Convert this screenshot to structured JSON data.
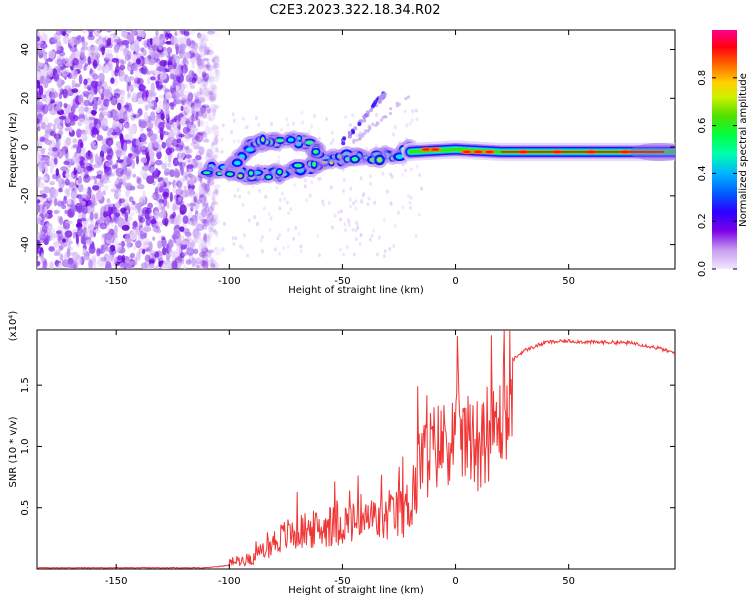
{
  "title": "C2E3.2023.322.18.34.R02",
  "chart_data": [
    {
      "type": "heatmap",
      "xlabel": "Height of straight line (km)",
      "ylabel": "Frequency (Hz)",
      "xlim": [
        -185,
        97
      ],
      "ylim": [
        -50,
        48
      ],
      "xticks": [
        -150,
        -100,
        -50,
        0,
        50
      ],
      "yticks": [
        -40,
        -20,
        0,
        20,
        40
      ],
      "colorbar": {
        "label": "Normalized spectral amplitude",
        "range": [
          0.0,
          1.0
        ],
        "ticks": [
          0.0,
          0.2,
          0.4,
          0.6,
          0.8
        ],
        "tick_labels": [
          "0.0",
          "0.2",
          "0.4",
          "0.6",
          "0.8"
        ],
        "colors": [
          "#f4e6ff",
          "#7a00e6",
          "#0000ff",
          "#00b4ff",
          "#00ff80",
          "#00e000",
          "#ffff00",
          "#ff8000",
          "#ff0000",
          "#ff0090"
        ]
      },
      "features": [
        {
          "name": "noise",
          "x_range": [
            -185,
            -105
          ],
          "freq_range": [
            -50,
            48
          ],
          "amplitude": 0.1
        },
        {
          "name": "lower branch",
          "points": [
            [
              -112,
              -10
            ],
            [
              -100,
              -9
            ],
            [
              -90,
              -12
            ],
            [
              -80,
              -11
            ],
            [
              -65,
              -8
            ],
            [
              -55,
              -5
            ],
            [
              -45,
              -4
            ],
            [
              -35,
              -4
            ],
            [
              -25,
              -3
            ],
            [
              -18,
              0
            ]
          ],
          "amplitude": 0.35
        },
        {
          "name": "upper branch",
          "points": [
            [
              -100,
              -10
            ],
            [
              -92,
              0
            ],
            [
              -85,
              2
            ],
            [
              -75,
              3
            ],
            [
              -65,
              2
            ],
            [
              -60,
              -3
            ]
          ],
          "amplitude": 0.3
        },
        {
          "name": "rising line",
          "points": [
            [
              -50,
              2
            ],
            [
              -42,
              10
            ],
            [
              -35,
              18
            ],
            [
              -30,
              23
            ]
          ],
          "amplitude": 0.2
        },
        {
          "name": "main line",
          "points": [
            [
              -20,
              -2
            ],
            [
              0,
              -1
            ],
            [
              20,
              -2
            ],
            [
              50,
              -2
            ],
            [
              97,
              -2
            ]
          ],
          "amplitude": 0.8
        }
      ]
    },
    {
      "type": "line",
      "xlabel": "Height of straight line (km)",
      "ylabel": "SNR (10 * v/v)",
      "y_multiplier": "(x10⁴)",
      "xlim": [
        -185,
        97
      ],
      "ylim": [
        0,
        1.95
      ],
      "xticks": [
        -150,
        -100,
        -50,
        0,
        50
      ],
      "yticks": [
        0.5,
        1.0,
        1.5
      ],
      "ytick_labels": [
        "0.5",
        "1.0",
        "1.5"
      ],
      "series": [
        {
          "name": "SNR",
          "color": "#f03535",
          "x": [
            -185,
            -150,
            -110,
            -100,
            -90,
            -85,
            -80,
            -75,
            -70,
            -60,
            -50,
            -40,
            -30,
            -22,
            -18,
            -15,
            -10,
            -5,
            0,
            5,
            10,
            15,
            20,
            25,
            30,
            40,
            50,
            60,
            70,
            80,
            90,
            97
          ],
          "values": [
            0.01,
            0.01,
            0.01,
            0.03,
            0.06,
            0.12,
            0.2,
            0.25,
            0.28,
            0.3,
            0.35,
            0.35,
            0.38,
            0.45,
            0.6,
            0.9,
            1.1,
            1.2,
            1.3,
            1.25,
            1.15,
            1.3,
            1.5,
            1.7,
            1.78,
            1.85,
            1.86,
            1.85,
            1.85,
            1.84,
            1.8,
            1.76
          ]
        }
      ]
    }
  ]
}
